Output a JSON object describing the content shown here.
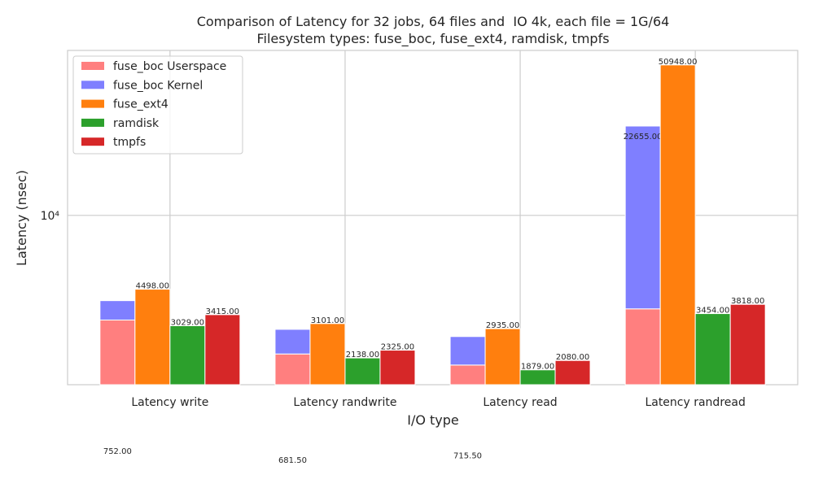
{
  "chart_data": {
    "type": "bar",
    "title": "Comparison of Latency for 32 jobs, 64 files and  IO 4k, each file = 1G/64",
    "subtitle": "Filesystem types: fuse_boc, fuse_ext4, ramdisk, tmpfs",
    "x_label": "I/O type",
    "y_label": "Latency (nsec)",
    "categories": [
      "Latency write",
      "Latency randwrite",
      "Latency read",
      "Latency randread"
    ],
    "series": [
      {
        "name": "fuse_boc Userspace",
        "color": "#ff7f7f",
        "values": [
          3222,
          2231.5,
          1979.5,
          3636
        ],
        "value_labels": [
          "3222.00",
          "2231.50",
          "1979.50",
          "3636.00"
        ]
      },
      {
        "name": "fuse_boc Kernel",
        "color": "#7f7fff",
        "stacked": true,
        "values": [
          752,
          681.5,
          715.5,
          22655
        ],
        "value_labels": [
          "752.00",
          "681.50",
          "715.50",
          "22655.00"
        ]
      },
      {
        "name": "fuse_ext4",
        "color": "#ff7f0e",
        "values": [
          4498,
          3101,
          2935,
          50948
        ],
        "value_labels": [
          "4498.00",
          "3101.00",
          "2935.00",
          "50948.00"
        ]
      },
      {
        "name": "ramdisk",
        "color": "#2ca02c",
        "values": [
          3029,
          2138,
          1879,
          3454
        ],
        "value_labels": [
          "3029.00",
          "2138.00",
          "1879.00",
          "3454.00"
        ]
      },
      {
        "name": "tmpfs",
        "color": "#d62728",
        "values": [
          3415,
          2325,
          2080,
          3818
        ],
        "value_labels": [
          "3415.00",
          "2325.00",
          "2080.00",
          "3818.00"
        ]
      }
    ],
    "log_scale": true,
    "ylim": [
      1600,
      59600
    ],
    "yticks": [
      {
        "value": 10000,
        "label": "10⁴"
      }
    ],
    "grid": true,
    "legend": "upper left"
  }
}
